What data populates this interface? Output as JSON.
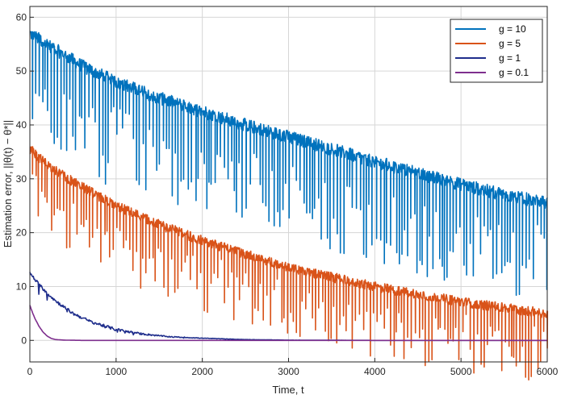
{
  "chart_data": {
    "type": "line",
    "title": "",
    "xlabel": "Time, t",
    "ylabel": "Estimation error, ||θ(t) − θ*||",
    "xlim": [
      0,
      6000
    ],
    "ylim": [
      -4,
      62
    ],
    "xticks": [
      0,
      1000,
      2000,
      3000,
      4000,
      5000,
      6000
    ],
    "yticks": [
      0,
      10,
      20,
      30,
      40,
      50,
      60
    ],
    "grid": true,
    "legend_position": "top-right",
    "series": [
      {
        "name": "g = 10",
        "color": "#0072BD",
        "x": [
          0,
          100,
          300,
          600,
          1000,
          1500,
          2000,
          2500,
          3000,
          3500,
          4000,
          4500,
          5000,
          5500,
          6000
        ],
        "values": [
          57,
          56,
          54,
          51,
          48,
          45,
          42.5,
          40,
          37.8,
          35.5,
          33.2,
          31,
          29,
          27,
          25.5
        ],
        "note": "noisy signal with frequent downward spikes to roughly 10-20 below the envelope"
      },
      {
        "name": "g = 5",
        "color": "#D95319",
        "x": [
          0,
          100,
          300,
          600,
          1000,
          1500,
          2000,
          2500,
          3000,
          3500,
          4000,
          4500,
          5000,
          5500,
          6000
        ],
        "values": [
          35.5,
          34,
          31.5,
          28.5,
          25,
          21.5,
          18.5,
          16,
          13.5,
          11.7,
          10,
          8.5,
          7.2,
          6,
          5
        ],
        "note": "noisy signal with frequent downward spikes to roughly 5-15 below the envelope"
      },
      {
        "name": "g = 1",
        "color": "#1F2E8C",
        "x": [
          0,
          100,
          200,
          300,
          500,
          700,
          1000,
          1300,
          1600,
          2000,
          2500,
          3000,
          4000,
          5000,
          6000
        ],
        "values": [
          12.5,
          10.5,
          8.8,
          7.3,
          5,
          3.5,
          2,
          1.2,
          0.7,
          0.4,
          0.15,
          0.05,
          0,
          0,
          0
        ]
      },
      {
        "name": "g = 0.1",
        "color": "#7E2F8E",
        "x": [
          0,
          30,
          60,
          100,
          150,
          200,
          250,
          300,
          400,
          600,
          1000,
          2000,
          3000,
          4000,
          5000,
          6000
        ],
        "values": [
          6.5,
          5.2,
          4,
          2.8,
          1.6,
          0.8,
          0.35,
          0.15,
          0.05,
          0,
          0,
          0,
          0,
          0,
          0,
          0
        ]
      }
    ]
  }
}
